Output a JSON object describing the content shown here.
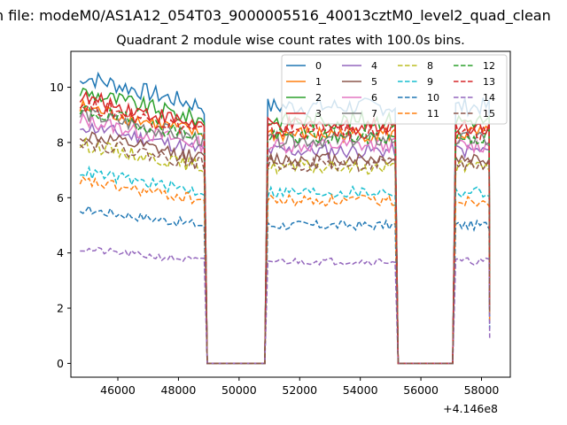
{
  "figure": {
    "suptitle": "n file: modeM0/AS1A12_054T03_9000005516_40013cztM0_level2_quad_clean",
    "offset_label": "+4.146e8"
  },
  "chart_data": {
    "type": "line",
    "title": "Quadrant 2 module wise count rates with 100.0s bins.",
    "xlabel": "",
    "ylabel": "",
    "x_offset": 414600000,
    "xlim": [
      44450,
      58950
    ],
    "ylim": [
      -0.5,
      11.3
    ],
    "xticks": [
      46000,
      48000,
      50000,
      52000,
      54000,
      56000,
      58000
    ],
    "yticks": [
      0,
      2,
      4,
      6,
      8,
      10
    ],
    "grid": false,
    "legend": {
      "placement": "top-right",
      "columns": 4
    },
    "segments": [
      [
        44750,
        48850
      ],
      [
        50950,
        55150
      ],
      [
        57150,
        58250
      ]
    ],
    "series": [
      {
        "name": "0",
        "color": "#1f77b4",
        "dash": false,
        "level": 9.3
      },
      {
        "name": "1",
        "color": "#ff7f0e",
        "dash": false,
        "level": 8.3
      },
      {
        "name": "2",
        "color": "#2ca02c",
        "dash": false,
        "level": 8.8
      },
      {
        "name": "3",
        "color": "#d62728",
        "dash": false,
        "level": 8.6
      },
      {
        "name": "4",
        "color": "#9467bd",
        "dash": false,
        "level": 7.7
      },
      {
        "name": "5",
        "color": "#8c564b",
        "dash": false,
        "level": 7.4
      },
      {
        "name": "6",
        "color": "#e377c2",
        "dash": false,
        "level": 7.9
      },
      {
        "name": "7",
        "color": "#7f7f7f",
        "dash": false,
        "level": 8.1
      },
      {
        "name": "8",
        "color": "#bcbd22",
        "dash": true,
        "level": 7.1
      },
      {
        "name": "9",
        "color": "#17becf",
        "dash": true,
        "level": 6.2
      },
      {
        "name": "10",
        "color": "#1f77b4",
        "dash": true,
        "level": 5.0
      },
      {
        "name": "11",
        "color": "#ff7f0e",
        "dash": true,
        "level": 5.9
      },
      {
        "name": "12",
        "color": "#2ca02c",
        "dash": true,
        "level": 8.2
      },
      {
        "name": "13",
        "color": "#d62728",
        "dash": true,
        "level": 8.4
      },
      {
        "name": "14",
        "color": "#9467bd",
        "dash": true,
        "level": 3.7
      },
      {
        "name": "15",
        "color": "#8c564b",
        "dash": true,
        "level": 7.2
      }
    ]
  }
}
